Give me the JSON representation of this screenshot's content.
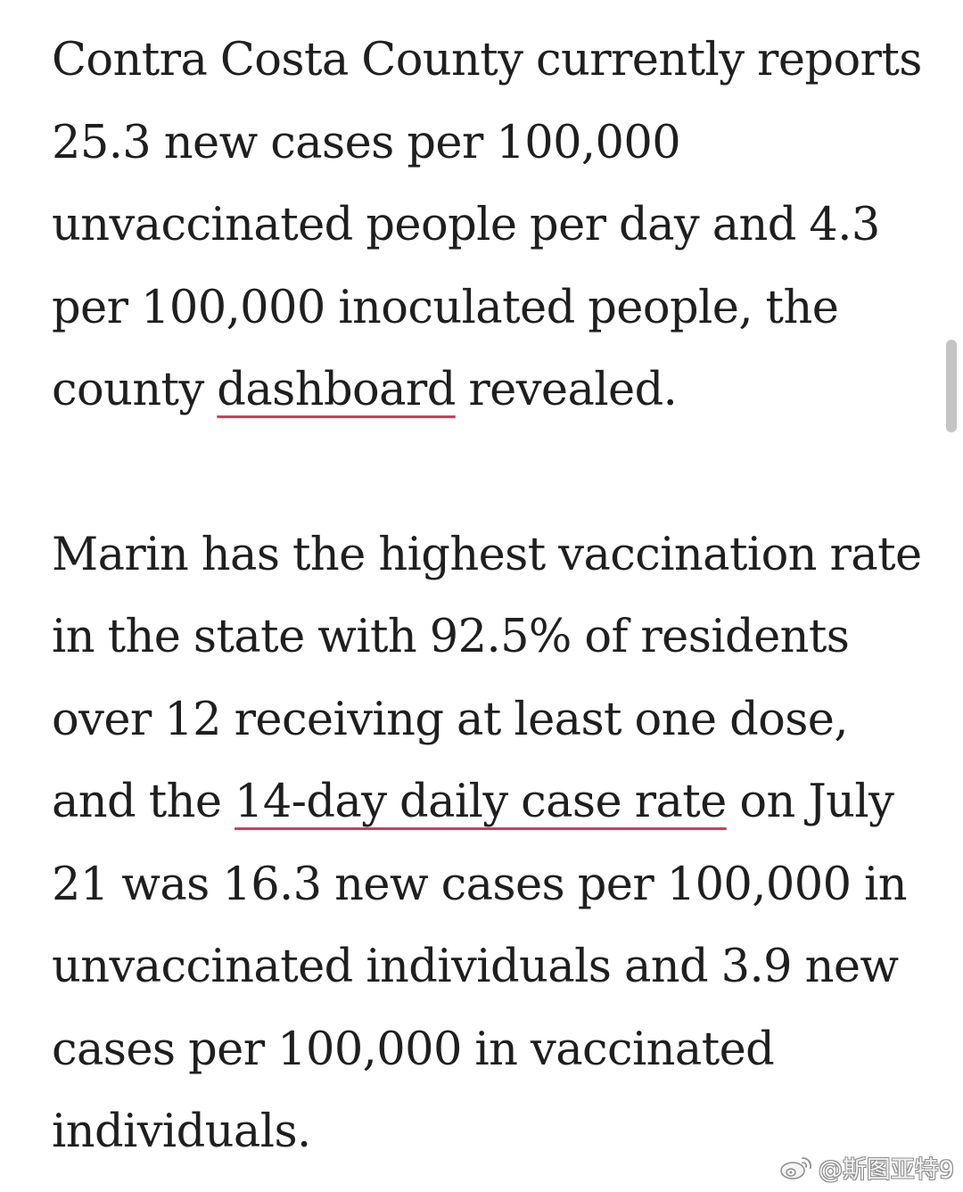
{
  "article": {
    "paragraph1": {
      "before_link": "Contra Costa County currently reports 25.3 new cases per 100,000 unvaccinated people per day and 4.3 per 100,000 inoculated people, the county ",
      "link": "dashboard",
      "after_link": " revealed."
    },
    "paragraph2": {
      "before_link": "Marin has the highest vaccination rate in the state with 92.5% of residents over 12 receiving at least one dose, and the ",
      "link": "14-day daily case rate",
      "after_link": " on July 21 was 16.3 new cases per 100,000 in unvaccinated individuals and 3.9 new cases per 100,000 in vaccinated individuals."
    }
  },
  "watermark": {
    "icon": "weibo-icon",
    "text": "@斯图亚特9"
  },
  "colors": {
    "text": "#1f1f1f",
    "link_underline": "#d33c5a",
    "scrollbar": "#c4c4c4"
  }
}
